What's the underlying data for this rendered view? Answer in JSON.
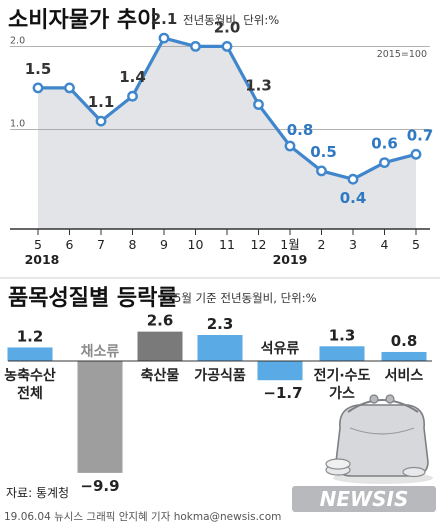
{
  "chart_data": [
    {
      "type": "line",
      "title": "소비자물가 추이",
      "subtitle": "전년동월비, 단위:%",
      "base_note": "2015=100",
      "x": [
        "5",
        "6",
        "7",
        "8",
        "9",
        "10",
        "11",
        "12",
        "1월",
        "2",
        "3",
        "4",
        "5"
      ],
      "year_labels": [
        "2018",
        "2019"
      ],
      "y_gridlines": [
        "2.0",
        "1.0"
      ],
      "ylim": [
        -0.2,
        2.4
      ],
      "series": [
        {
          "values": [
            1.5,
            1.5,
            1.1,
            1.4,
            2.1,
            2.0,
            2.0,
            1.3,
            0.8,
            0.5,
            0.4,
            0.6,
            0.7
          ],
          "point_labels": [
            "1.5",
            "",
            "1.1",
            "1.4",
            "2.1",
            "",
            "2.0",
            "1.3",
            "0.8",
            "0.5",
            "0.4",
            "0.6",
            "0.7"
          ]
        }
      ]
    },
    {
      "type": "bar",
      "title": "품목성질별 등락률",
      "subtitle": "5월 기준 전년동월비, 단위:%",
      "categories": [
        [
          "농축수산",
          "전체"
        ],
        [
          "채소류"
        ],
        [
          "축산물"
        ],
        [
          "가공식품"
        ],
        [
          "석유류"
        ],
        [
          "전기·수도",
          "가스"
        ],
        [
          "서비스"
        ]
      ],
      "values": [
        1.2,
        -9.9,
        2.6,
        2.3,
        -1.7,
        1.3,
        0.8
      ],
      "value_labels": [
        "1.2",
        "−9.9",
        "2.6",
        "2.3",
        "−1.7",
        "1.3",
        "0.8"
      ]
    }
  ],
  "colors": {
    "line": "#3f86cc",
    "bar_positive": "#5aaae6",
    "bar_grey": "#9e9e9e",
    "bar_grey_dark": "#7a7a7a",
    "area_fill": "#e2e4e7"
  },
  "icon": "coin-purse-icon",
  "source": "자료: 통계청",
  "credit": "19.06.04 뉴시스 그래픽 안지혜 기자 hokma@newsis.com",
  "logo": "NEWSIS"
}
